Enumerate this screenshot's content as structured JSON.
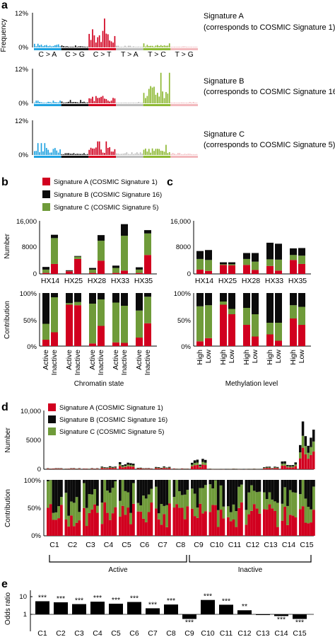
{
  "colors": {
    "CtoA": "#1fa2e0",
    "CtoG": "#111111",
    "CtoT": "#d1001f",
    "TtoA": "#bdbdbd",
    "TtoC": "#8db833",
    "TtoG": "#f2b9bd",
    "sigA": "#d1001f",
    "sigB": "#0b0b0b",
    "sigC": "#6f9b3a"
  },
  "panel_a": {
    "label": "a",
    "ylabel": "Frequency",
    "mutation_labels": [
      "C > A",
      "C > G",
      "C > T",
      "T > A",
      "T > C",
      "T > G"
    ],
    "signatures": [
      {
        "name": "Signature A",
        "desc": "(corresponds to COSMIC Signature 1)",
        "ymax_label": "12%",
        "ymin_label": "0%",
        "group_peaks": [
          0.18,
          0.06,
          0.85,
          0.05,
          0.12,
          0.03
        ]
      },
      {
        "name": "Signature B",
        "desc": "(corresponds to COSMIC Signature 16)",
        "ymax_label": "12%",
        "ymin_label": "0%",
        "group_peaks": [
          0.08,
          0.1,
          0.35,
          0.04,
          0.9,
          0.04
        ]
      },
      {
        "name": "Signature C",
        "desc": "(corresponds to COSMIC Signature 5)",
        "ymax_label": "12%",
        "ymin_label": "0%",
        "group_peaks": [
          0.35,
          0.1,
          0.4,
          0.08,
          0.3,
          0.06
        ]
      }
    ]
  },
  "panel_b": {
    "label": "b",
    "legend": [
      "Signature A (COSMIC Signature 1)",
      "Signature B (COSMIC Signature 16)",
      "Signature C (COSMIC Signature 5)"
    ],
    "number_ylabel": "Number",
    "number_ticks": [
      "16,000",
      "8000",
      "0"
    ],
    "contrib_ylabel": "Contribution",
    "contrib_ticks": [
      "100%",
      "50%",
      "0%"
    ],
    "samples": [
      "HX14",
      "HX25",
      "HX28",
      "HX33",
      "HX35"
    ],
    "bar_labels": [
      "Active",
      "Inactive"
    ],
    "xlabel": "Chromatin state"
  },
  "panel_c": {
    "label": "c",
    "number_ticks": [
      "16,000",
      "8000",
      "0"
    ],
    "contrib_ticks": [
      "100%",
      "50%",
      "0%"
    ],
    "samples": [
      "HX14",
      "HX25",
      "HX28",
      "HX33",
      "HX35"
    ],
    "bar_labels": [
      "High",
      "Low"
    ],
    "xlabel": "Methylation level"
  },
  "panel_d": {
    "label": "d",
    "legend": [
      "Signature A (COSMIC Signature 1)",
      "Signature B (COSMIC Signature 16)",
      "Signature C (COSMIC Signature 5)"
    ],
    "number_ylabel": "Number",
    "number_ticks": [
      "10,000",
      "5000",
      "0"
    ],
    "contrib_ylabel": "Contribution",
    "contrib_ticks": [
      "100%",
      "50%",
      "0%"
    ],
    "clusters": [
      "C1",
      "C2",
      "C3",
      "C4",
      "C5",
      "C6",
      "C7",
      "C8",
      "C9",
      "C10",
      "C11",
      "C12",
      "C13",
      "C14",
      "C15"
    ],
    "group_active": "Active",
    "group_inactive": "Inactive"
  },
  "panel_e": {
    "label": "e",
    "ylabel": "Odds ratio",
    "ticks": [
      "10",
      "1"
    ],
    "clusters": [
      "C1",
      "C2",
      "C3",
      "C4",
      "C5",
      "C6",
      "C7",
      "C8",
      "C9",
      "C10",
      "C11",
      "C12",
      "C13",
      "C14",
      "C15"
    ],
    "stars": [
      "***",
      "***",
      "***",
      "***",
      "***",
      "***",
      "***",
      "***",
      "***",
      "***",
      "***",
      "**",
      "",
      "***",
      "***"
    ]
  },
  "chart_data": [
    {
      "type": "bar",
      "panel": "b-number",
      "ylabel": "Number",
      "ylim": [
        0,
        16000
      ],
      "categories": [
        "HX14 Active",
        "HX14 Inactive",
        "HX25 Active",
        "HX25 Inactive",
        "HX28 Active",
        "HX28 Inactive",
        "HX33 Active",
        "HX33 Inactive",
        "HX35 Active",
        "HX35 Inactive"
      ],
      "series": [
        {
          "name": "Signature A (COSMIC Signature 1)",
          "values": [
            300,
            3000,
            800,
            4500,
            300,
            4000,
            300,
            1000,
            300,
            5700
          ]
        },
        {
          "name": "Signature C (COSMIC Signature 5)",
          "values": [
            1000,
            7800,
            100,
            700,
            1000,
            6000,
            1500,
            10500,
            1000,
            6500
          ]
        },
        {
          "name": "Signature B (COSMIC Signature 16)",
          "values": [
            800,
            1000,
            200,
            200,
            500,
            1700,
            700,
            3500,
            700,
            1000
          ]
        }
      ]
    },
    {
      "type": "bar",
      "panel": "b-contribution",
      "ylabel": "Contribution",
      "ylim": [
        0,
        100
      ],
      "categories": [
        "HX14 Active",
        "HX14 Inactive",
        "HX25 Active",
        "HX25 Inactive",
        "HX28 Active",
        "HX28 Inactive",
        "HX33 Active",
        "HX33 Inactive",
        "HX35 Active",
        "HX35 Inactive"
      ],
      "series": [
        {
          "name": "Signature A (COSMIC Signature 1)",
          "values": [
            12,
            26,
            78,
            77,
            5,
            38,
            7,
            6,
            16,
            43
          ]
        },
        {
          "name": "Signature C (COSMIC Signature 5)",
          "values": [
            30,
            66,
            3,
            6,
            75,
            50,
            75,
            70,
            51,
            50
          ]
        },
        {
          "name": "Signature B (COSMIC Signature 16)",
          "values": [
            58,
            8,
            19,
            17,
            20,
            12,
            18,
            24,
            33,
            7
          ]
        }
      ]
    },
    {
      "type": "bar",
      "panel": "c-number",
      "ylim": [
        0,
        16000
      ],
      "categories": [
        "HX14 High",
        "HX14 Low",
        "HX25 High",
        "HX25 Low",
        "HX28 High",
        "HX28 Low",
        "HX33 High",
        "HX33 Low",
        "HX35 High",
        "HX35 Low"
      ],
      "series": [
        {
          "name": "Signature A (COSMIC Signature 1)",
          "values": [
            1300,
            900,
            2700,
            2600,
            2700,
            1200,
            2400,
            1000,
            4200,
            3000
          ]
        },
        {
          "name": "Signature C (COSMIC Signature 5)",
          "values": [
            3200,
            3300,
            200,
            300,
            1800,
            2500,
            2000,
            3300,
            1500,
            2500
          ]
        },
        {
          "name": "Signature B (COSMIC Signature 16)",
          "values": [
            2400,
            3000,
            600,
            600,
            1800,
            2600,
            5000,
            4800,
            2000,
            2300
          ]
        }
      ]
    },
    {
      "type": "bar",
      "panel": "c-contribution",
      "ylim": [
        0,
        100
      ],
      "categories": [
        "HX14 High",
        "HX14 Low",
        "HX25 High",
        "HX25 Low",
        "HX28 High",
        "HX28 Low",
        "HX33 High",
        "HX33 Low",
        "HX35 High",
        "HX35 Low"
      ],
      "series": [
        {
          "name": "Signature A (COSMIC Signature 1)",
          "values": [
            9,
            15,
            78,
            60,
            40,
            18,
            22,
            10,
            52,
            40
          ]
        },
        {
          "name": "Signature C (COSMIC Signature 5)",
          "values": [
            66,
            62,
            6,
            10,
            32,
            42,
            22,
            34,
            25,
            34
          ]
        },
        {
          "name": "Signature B (COSMIC Signature 16)",
          "values": [
            25,
            23,
            16,
            30,
            28,
            40,
            56,
            56,
            23,
            26
          ]
        }
      ]
    },
    {
      "type": "bar",
      "panel": "e",
      "ylabel": "Odds ratio",
      "categories": [
        "C1",
        "C2",
        "C3",
        "C4",
        "C5",
        "C6",
        "C7",
        "C8",
        "C9",
        "C10",
        "C11",
        "C12",
        "C13",
        "C14",
        "C15"
      ],
      "values": [
        5.5,
        4.8,
        3.8,
        5.2,
        4.0,
        5.0,
        2.2,
        3.6,
        0.55,
        6.5,
        3.5,
        1.7,
        0.95,
        0.8,
        0.55
      ]
    }
  ]
}
